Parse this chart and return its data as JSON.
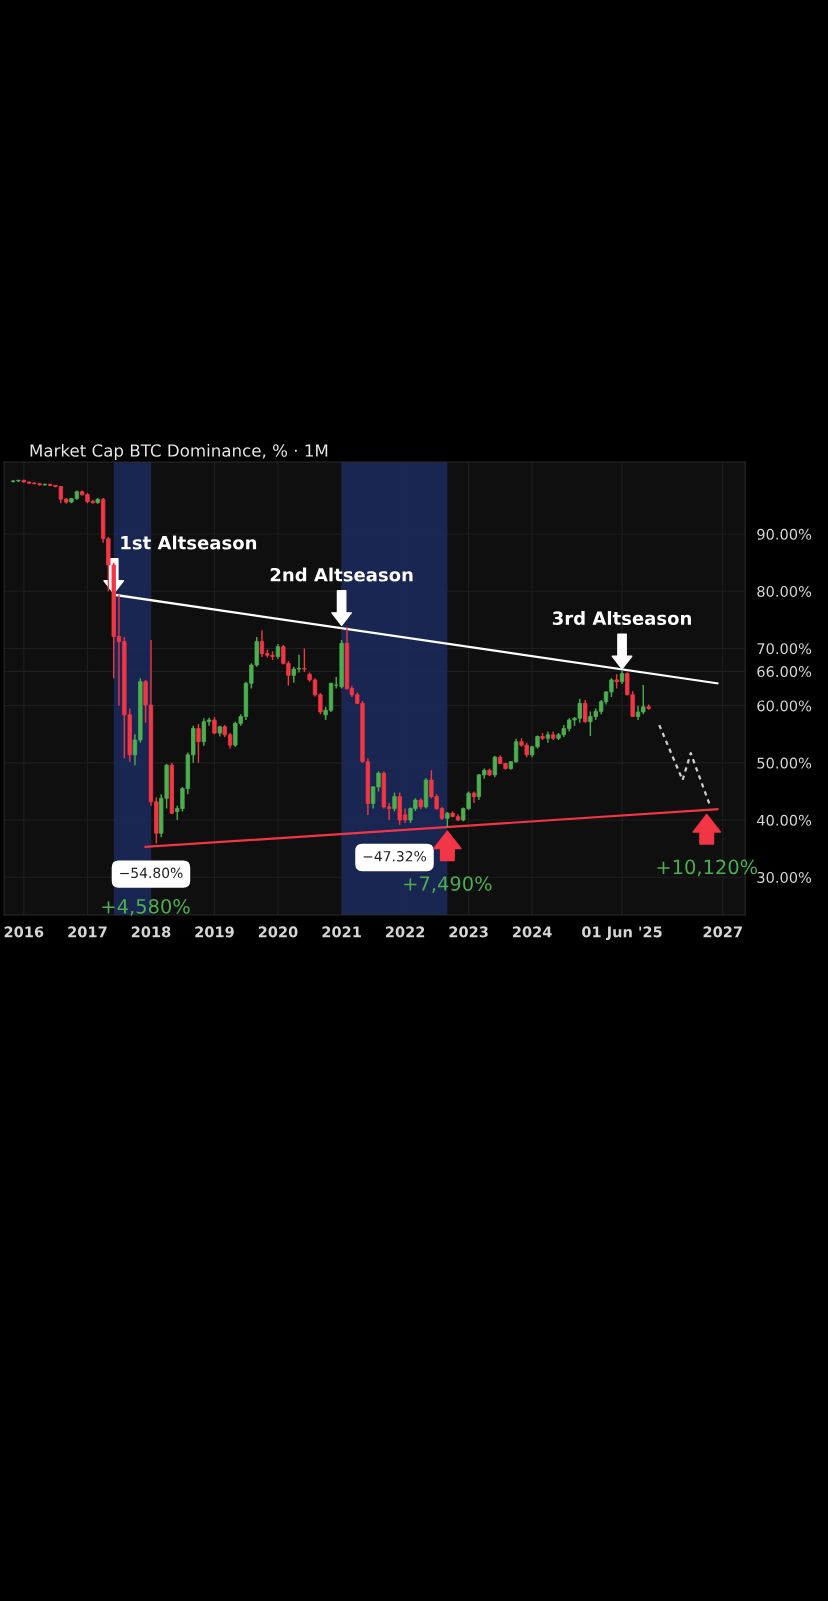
{
  "chart_data": {
    "type": "candlestick",
    "title": "Market Cap BTC Dominance, % · 1M",
    "x": [
      "2015-11",
      "2015-12",
      "2016-01",
      "2016-02",
      "2016-03",
      "2016-04",
      "2016-05",
      "2016-06",
      "2016-07",
      "2016-08",
      "2016-09",
      "2016-10",
      "2016-11",
      "2016-12",
      "2017-01",
      "2017-02",
      "2017-03",
      "2017-04",
      "2017-05",
      "2017-06",
      "2017-07",
      "2017-08",
      "2017-09",
      "2017-10",
      "2017-11",
      "2017-12",
      "2018-01",
      "2018-02",
      "2018-03",
      "2018-04",
      "2018-05",
      "2018-06",
      "2018-07",
      "2018-08",
      "2018-09",
      "2018-10",
      "2018-11",
      "2018-12",
      "2019-01",
      "2019-02",
      "2019-03",
      "2019-04",
      "2019-05",
      "2019-06",
      "2019-07",
      "2019-08",
      "2019-09",
      "2019-10",
      "2019-11",
      "2019-12",
      "2020-01",
      "2020-02",
      "2020-03",
      "2020-04",
      "2020-05",
      "2020-06",
      "2020-07",
      "2020-08",
      "2020-09",
      "2020-10",
      "2020-11",
      "2020-12",
      "2021-01",
      "2021-02",
      "2021-03",
      "2021-04",
      "2021-05",
      "2021-06",
      "2021-07",
      "2021-08",
      "2021-09",
      "2021-10",
      "2021-11",
      "2021-12",
      "2022-01",
      "2022-02",
      "2022-03",
      "2022-04",
      "2022-05",
      "2022-06",
      "2022-07",
      "2022-08",
      "2022-09",
      "2022-10",
      "2022-11",
      "2022-12",
      "2023-01",
      "2023-02",
      "2023-03",
      "2023-04",
      "2023-05",
      "2023-06",
      "2023-07",
      "2023-08",
      "2023-09",
      "2023-10",
      "2023-11",
      "2023-12",
      "2024-01",
      "2024-02",
      "2024-03",
      "2024-04",
      "2024-05",
      "2024-06",
      "2024-07",
      "2024-08",
      "2024-09",
      "2024-10",
      "2024-11",
      "2024-12",
      "2025-01",
      "2025-02",
      "2025-03",
      "2025-04",
      "2025-05",
      "2025-06",
      "2025-07",
      "2025-08",
      "2025-09",
      "2025-10",
      "2025-11"
    ],
    "ohlc": [
      [
        99.2,
        99.4,
        99.0,
        99.3
      ],
      [
        99.3,
        99.5,
        99.1,
        99.4
      ],
      [
        99.4,
        99.5,
        99.0,
        99.1
      ],
      [
        99.1,
        99.2,
        98.8,
        98.9
      ],
      [
        98.9,
        99.1,
        98.7,
        98.8
      ],
      [
        98.8,
        98.9,
        98.5,
        98.6
      ],
      [
        98.6,
        98.8,
        98.5,
        98.7
      ],
      [
        98.7,
        98.8,
        98.4,
        98.5
      ],
      [
        98.5,
        98.6,
        98.2,
        98.3
      ],
      [
        98.3,
        98.4,
        95.4,
        96.1
      ],
      [
        96.1,
        96.3,
        95.3,
        95.6
      ],
      [
        95.6,
        96.3,
        95.4,
        96.2
      ],
      [
        96.2,
        97.6,
        96.0,
        97.4
      ],
      [
        97.4,
        97.6,
        96.7,
        96.9
      ],
      [
        96.9,
        97.2,
        95.4,
        95.7
      ],
      [
        95.7,
        96.0,
        95.3,
        95.5
      ],
      [
        95.5,
        96.3,
        95.3,
        96.1
      ],
      [
        96.1,
        96.3,
        88.5,
        89.2
      ],
      [
        89.2,
        89.5,
        80.0,
        84.6
      ],
      [
        84.6,
        85.0,
        64.8,
        72.1
      ],
      [
        72.1,
        79.4,
        60.0,
        71.2
      ],
      [
        71.2,
        72.0,
        50.8,
        58.4
      ],
      [
        58.4,
        59.5,
        50.2,
        51.4
      ],
      [
        51.4,
        55.0,
        49.6,
        54.0
      ],
      [
        54.0,
        64.8,
        53.5,
        64.2
      ],
      [
        64.2,
        64.5,
        57.0,
        60.1
      ],
      [
        60.1,
        71.5,
        42.5,
        43.2
      ],
      [
        43.2,
        44.0,
        35.9,
        37.7
      ],
      [
        37.7,
        44.5,
        37.0,
        43.8
      ],
      [
        43.8,
        49.8,
        42.0,
        49.6
      ],
      [
        49.6,
        50.0,
        41.0,
        41.2
      ],
      [
        41.5,
        42.5,
        40.0,
        42.0
      ],
      [
        42.0,
        45.8,
        41.5,
        45.5
      ],
      [
        45.5,
        51.8,
        44.5,
        51.4
      ],
      [
        51.4,
        56.5,
        50.0,
        56.0
      ],
      [
        56.0,
        56.8,
        50.0,
        53.7
      ],
      [
        53.7,
        57.8,
        53.0,
        57.2
      ],
      [
        57.2,
        57.9,
        56.5,
        57.5
      ],
      [
        57.5,
        58.0,
        55.0,
        55.2
      ],
      [
        55.2,
        56.5,
        54.6,
        56.3
      ],
      [
        56.3,
        56.6,
        54.5,
        54.9
      ],
      [
        54.9,
        55.2,
        52.5,
        53.1
      ],
      [
        53.1,
        57.2,
        52.8,
        56.9
      ],
      [
        56.9,
        58.5,
        56.5,
        58.1
      ],
      [
        58.1,
        64.2,
        57.5,
        63.9
      ],
      [
        63.9,
        67.4,
        63.0,
        67.1
      ],
      [
        67.1,
        72.0,
        66.8,
        71.2
      ],
      [
        71.2,
        73.2,
        68.5,
        69.1
      ],
      [
        69.1,
        69.8,
        68.4,
        68.8
      ],
      [
        68.8,
        69.5,
        68.0,
        68.6
      ],
      [
        68.6,
        70.8,
        68.2,
        70.3
      ],
      [
        70.3,
        70.6,
        67.2,
        67.4
      ],
      [
        67.4,
        67.8,
        63.5,
        65.3
      ],
      [
        65.3,
        66.8,
        64.0,
        66.4
      ],
      [
        66.4,
        68.9,
        65.8,
        66.5
      ],
      [
        66.5,
        70.0,
        65.9,
        66.4
      ],
      [
        65.5,
        65.8,
        64.2,
        64.5
      ],
      [
        64.5,
        64.8,
        61.6,
        61.9
      ],
      [
        61.9,
        62.2,
        58.5,
        58.9
      ],
      [
        58.4,
        59.8,
        57.5,
        59.2
      ],
      [
        59.2,
        64.0,
        58.9,
        63.9
      ],
      [
        63.6,
        65.0,
        63.0,
        63.6
      ],
      [
        63.3,
        71.5,
        63.0,
        70.9
      ],
      [
        70.9,
        73.8,
        62.8,
        63.0
      ],
      [
        63.0,
        63.5,
        61.5,
        61.9
      ],
      [
        61.9,
        62.3,
        60.3,
        60.4
      ],
      [
        60.4,
        60.8,
        50.0,
        50.2
      ],
      [
        50.2,
        50.8,
        40.9,
        42.9
      ],
      [
        42.9,
        45.9,
        42.0,
        45.8
      ],
      [
        45.8,
        48.5,
        45.0,
        48.2
      ],
      [
        48.2,
        48.5,
        42.0,
        42.3
      ],
      [
        42.3,
        43.0,
        40.0,
        42.0
      ],
      [
        42.0,
        44.8,
        41.5,
        44.1
      ],
      [
        44.1,
        44.8,
        39.2,
        40.0
      ],
      [
        40.9,
        42.0,
        39.5,
        40.0
      ],
      [
        40.0,
        42.2,
        39.5,
        42.0
      ],
      [
        42.0,
        43.8,
        41.6,
        43.5
      ],
      [
        43.5,
        43.8,
        41.9,
        42.3
      ],
      [
        42.3,
        47.3,
        42.0,
        47.0
      ],
      [
        47.0,
        48.7,
        43.8,
        44.1
      ],
      [
        44.1,
        44.5,
        41.8,
        42.0
      ],
      [
        42.0,
        42.3,
        40.0,
        40.3
      ],
      [
        40.3,
        41.4,
        38.8,
        41.2
      ],
      [
        41.2,
        41.5,
        40.5,
        40.6
      ],
      [
        40.6,
        41.0,
        39.9,
        40.0
      ],
      [
        40.0,
        42.2,
        39.8,
        42.0
      ],
      [
        42.0,
        45.0,
        41.8,
        44.7
      ],
      [
        44.7,
        45.0,
        43.0,
        44.1
      ],
      [
        44.1,
        48.0,
        43.5,
        47.9
      ],
      [
        47.9,
        49.0,
        47.2,
        48.7
      ],
      [
        48.7,
        49.0,
        47.7,
        47.9
      ],
      [
        47.9,
        51.2,
        47.5,
        51.0
      ],
      [
        51.0,
        51.3,
        49.9,
        49.9
      ],
      [
        49.9,
        50.0,
        48.8,
        49.0
      ],
      [
        49.0,
        50.3,
        48.8,
        50.2
      ],
      [
        50.2,
        54.2,
        50.0,
        53.7
      ],
      [
        53.7,
        54.3,
        52.8,
        53.1
      ],
      [
        53.1,
        53.5,
        51.0,
        51.4
      ],
      [
        51.4,
        53.0,
        51.0,
        52.8
      ],
      [
        52.8,
        54.8,
        52.5,
        54.6
      ],
      [
        54.6,
        55.2,
        54.0,
        54.3
      ],
      [
        54.3,
        55.5,
        53.5,
        54.9
      ],
      [
        54.9,
        55.5,
        54.0,
        54.3
      ],
      [
        54.3,
        55.2,
        54.0,
        54.9
      ],
      [
        54.9,
        56.6,
        54.5,
        56.0
      ],
      [
        56.0,
        57.8,
        55.5,
        57.5
      ],
      [
        57.5,
        58.0,
        56.5,
        57.8
      ],
      [
        57.8,
        61.2,
        57.0,
        60.4
      ],
      [
        60.4,
        61.0,
        57.0,
        57.2
      ],
      [
        57.2,
        59.0,
        54.7,
        58.1
      ],
      [
        58.1,
        59.5,
        57.5,
        59.0
      ],
      [
        59.0,
        61.0,
        58.5,
        60.7
      ],
      [
        60.7,
        62.5,
        60.2,
        62.4
      ],
      [
        62.4,
        64.8,
        61.5,
        64.5
      ],
      [
        64.5,
        65.5,
        63.0,
        64.2
      ],
      [
        64.2,
        66.2,
        63.8,
        65.6
      ],
      [
        65.6,
        65.8,
        61.8,
        61.9
      ],
      [
        61.9,
        62.5,
        58.0,
        58.1
      ],
      [
        58.1,
        60.0,
        57.5,
        58.9
      ],
      [
        58.9,
        63.6,
        58.5,
        59.8
      ],
      [
        59.8,
        60.2,
        59.3,
        59.5
      ]
    ],
    "colors": [
      "#4caf50",
      "#4caf50",
      "#f23645",
      "#f23645",
      "#f23645",
      "#f23645",
      "#4caf50",
      "#f23645",
      "#f23645",
      "#f23645",
      "#f23645",
      "#4caf50",
      "#4caf50",
      "#f23645",
      "#f23645",
      "#f23645",
      "#4caf50",
      "#f23645",
      "#f23645",
      "#f23645",
      "#f23645",
      "#f23645",
      "#f23645",
      "#4caf50",
      "#4caf50",
      "#f23645",
      "#f23645",
      "#f23645",
      "#4caf50",
      "#4caf50",
      "#f23645",
      "#4caf50",
      "#4caf50",
      "#4caf50",
      "#4caf50",
      "#f23645",
      "#4caf50",
      "#4caf50",
      "#f23645",
      "#4caf50",
      "#f23645",
      "#f23645",
      "#4caf50",
      "#4caf50",
      "#4caf50",
      "#4caf50",
      "#4caf50",
      "#f23645",
      "#f23645",
      "#f23645",
      "#4caf50",
      "#f23645",
      "#f23645",
      "#4caf50",
      "#4caf50",
      "#f23645",
      "#f23645",
      "#f23645",
      "#f23645",
      "#4caf50",
      "#4caf50",
      "#4caf50",
      "#4caf50",
      "#f23645",
      "#f23645",
      "#f23645",
      "#f23645",
      "#f23645",
      "#4caf50",
      "#4caf50",
      "#f23645",
      "#f23645",
      "#4caf50",
      "#f23645",
      "#f23645",
      "#4caf50",
      "#4caf50",
      "#f23645",
      "#4caf50",
      "#f23645",
      "#f23645",
      "#f23645",
      "#4caf50",
      "#f23645",
      "#f23645",
      "#4caf50",
      "#4caf50",
      "#f23645",
      "#4caf50",
      "#4caf50",
      "#f23645",
      "#4caf50",
      "#f23645",
      "#f23645",
      "#4caf50",
      "#4caf50",
      "#f23645",
      "#f23645",
      "#4caf50",
      "#4caf50",
      "#f23645",
      "#4caf50",
      "#f23645",
      "#4caf50",
      "#4caf50",
      "#4caf50",
      "#4caf50",
      "#4caf50",
      "#f23645",
      "#4caf50",
      "#4caf50",
      "#4caf50",
      "#4caf50",
      "#4caf50",
      "#f23645",
      "#4caf50",
      "#f23645",
      "#f23645",
      "#4caf50",
      "#4caf50",
      "#f23645"
    ],
    "series": [
      {
        "type": "line",
        "color": "#ffffff",
        "x": [
          "2017-06",
          "2026-12"
        ],
        "values": [
          79.4,
          63.9
        ]
      },
      {
        "type": "line",
        "color": "#f23645",
        "x": [
          "2017-12",
          "2026-12"
        ],
        "values": [
          35.3,
          41.9
        ]
      },
      {
        "type": "line",
        "color": "#d0d0d0",
        "line_style": "dashed",
        "x": [
          "2026-01",
          "2026-05-15",
          "2026-07",
          "2026-10-15"
        ],
        "values": [
          56.6,
          47.0,
          51.7,
          42.9
        ]
      }
    ],
    "bands": [
      {
        "axis": "x",
        "from": "2017-06",
        "to": "2018-01",
        "color": "#1c2a5e"
      },
      {
        "axis": "x",
        "from": "2021-01",
        "to": "2022-09",
        "color": "#1c2a5e"
      }
    ],
    "annotations": [
      {
        "text": "1st Altseason",
        "x": "2017-06",
        "y": 79.4
      },
      {
        "text": "2nd Altseason",
        "x": "2021-01",
        "y": 73.8
      },
      {
        "text": "3rd Altseason",
        "x": "2025-06",
        "y": 66.2
      },
      {
        "text": "−54.80%",
        "x": "2018-01",
        "y": 35.9
      },
      {
        "text": "−47.32%",
        "x": "2021-11",
        "y": 38.8
      },
      {
        "text": "+4,580%",
        "x": "2017-12",
        "y": 35.3
      },
      {
        "text": "+7,490%",
        "x": "2022-09",
        "y": 38.8
      },
      {
        "text": "+10,120%",
        "x": "2026-10",
        "y": 41.7
      }
    ],
    "xlim": [
      "2015-09-10",
      "2027-05-10"
    ],
    "xticks": [
      {
        "value": "2016-01",
        "label": "2016"
      },
      {
        "value": "2017-01",
        "label": "2017"
      },
      {
        "value": "2018-01",
        "label": "2018"
      },
      {
        "value": "2019-01",
        "label": "2019"
      },
      {
        "value": "2020-01",
        "label": "2020"
      },
      {
        "value": "2021-01",
        "label": "2021"
      },
      {
        "value": "2022-01",
        "label": "2022"
      },
      {
        "value": "2023-01",
        "label": "2023"
      },
      {
        "value": "2024-01",
        "label": "2024"
      },
      {
        "value": "2025-06-01",
        "label": "01 Jun '25"
      },
      {
        "value": "2027-01",
        "label": "2027"
      }
    ],
    "ylim": [
      23.4,
      102.6
    ],
    "yticks": [
      {
        "value": 30,
        "label": "30.00%"
      },
      {
        "value": 40,
        "label": "40.00%"
      },
      {
        "value": 50,
        "label": "50.00%"
      },
      {
        "value": 60,
        "label": "60.00%"
      },
      {
        "value": 66,
        "label": "66.00%"
      },
      {
        "value": 70,
        "label": "70.00%"
      },
      {
        "value": 80,
        "label": "80.00%"
      },
      {
        "value": 90,
        "label": "90.00%"
      }
    ],
    "grid": true,
    "legend": false
  }
}
